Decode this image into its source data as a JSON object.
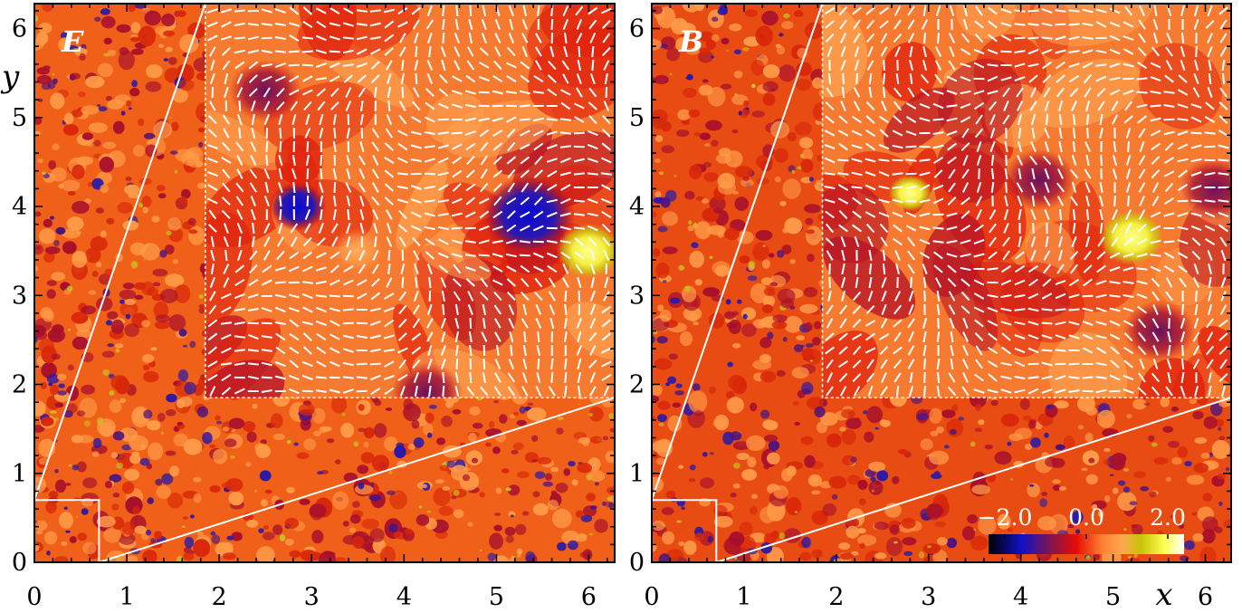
{
  "chart_data": [
    {
      "type": "heatmap",
      "panel_label": "E",
      "xlabel": "",
      "ylabel": "y",
      "xlim": [
        0,
        6.28
      ],
      "ylim": [
        0,
        6.28
      ],
      "xticks": [
        "0",
        "1",
        "2",
        "3",
        "4",
        "5",
        "6"
      ],
      "yticks": [
        "0",
        "1",
        "2",
        "3",
        "4",
        "5",
        "6"
      ],
      "inset": {
        "source_region": [
          0,
          0.7,
          0,
          0.7
        ],
        "display_region": [
          1.85,
          6.28,
          1.85,
          6.28
        ]
      },
      "features": [
        {
          "x": 2.5,
          "y": 5.3,
          "value": -1.5
        },
        {
          "x": 2.85,
          "y": 4.0,
          "value": -1.8
        },
        {
          "x": 5.35,
          "y": 3.9,
          "value": -2.0
        },
        {
          "x": 6.0,
          "y": 3.5,
          "value": 2.0
        },
        {
          "x": 3.5,
          "y": 3.5,
          "value": 1.4
        },
        {
          "x": 4.25,
          "y": 1.9,
          "value": -1.2
        }
      ]
    },
    {
      "type": "heatmap",
      "panel_label": "B",
      "xlabel": "x",
      "ylabel": "",
      "xlim": [
        0,
        6.28
      ],
      "ylim": [
        0,
        6.28
      ],
      "xticks": [
        "0",
        "1",
        "2",
        "3",
        "4",
        "5",
        "6"
      ],
      "yticks": [
        "0",
        "1",
        "2",
        "3",
        "4",
        "5",
        "6"
      ],
      "inset": {
        "source_region": [
          0,
          0.7,
          0,
          0.7
        ],
        "display_region": [
          1.85,
          6.28,
          1.85,
          6.28
        ]
      },
      "features": [
        {
          "x": 2.8,
          "y": 4.15,
          "value": 1.8
        },
        {
          "x": 5.2,
          "y": 3.65,
          "value": 2.0
        },
        {
          "x": 5.5,
          "y": 2.6,
          "value": -1.4
        },
        {
          "x": 4.2,
          "y": 4.3,
          "value": -1.0
        },
        {
          "x": 6.1,
          "y": 4.2,
          "value": -1.3
        }
      ]
    }
  ],
  "colorbar": {
    "tick_labels": [
      "−2.0",
      "0.0",
      "2.0"
    ],
    "tick_values": [
      -2.0,
      0.0,
      2.0
    ],
    "range": [
      -2.4,
      2.4
    ],
    "colors": [
      "#000000",
      "#1010c8",
      "#8c1446",
      "#e80c06",
      "#ff8030",
      "#ffa64e",
      "#c8c40a",
      "#ffff50",
      "#ffffff"
    ]
  }
}
